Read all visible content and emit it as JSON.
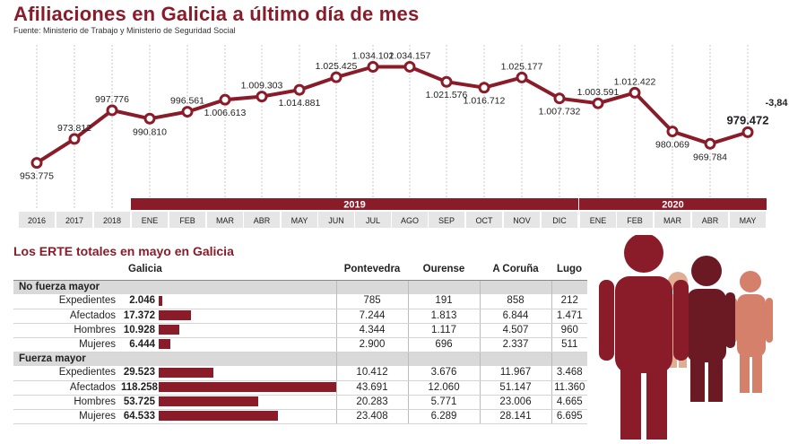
{
  "title": "Afiliaciones en Galicia a último día de mes",
  "source": "Fuente: Ministerio de Trabajo y Ministerio de Seguridad Social",
  "chart_data": {
    "type": "line",
    "x": [
      "2016",
      "2017",
      "2018",
      "ENE",
      "FEB",
      "MAR",
      "ABR",
      "MAY",
      "JUN",
      "JUL",
      "AGO",
      "SEP",
      "OCT",
      "NOV",
      "DIC",
      "ENE",
      "FEB",
      "MAR",
      "ABR",
      "MAY"
    ],
    "values": [
      953775,
      973812,
      997776,
      990810,
      996561,
      1006613,
      1009303,
      1014881,
      1025425,
      1034102,
      1034157,
      1021576,
      1016712,
      1025177,
      1007732,
      1003591,
      1012422,
      980069,
      969784,
      979472
    ],
    "value_labels": [
      "953.775",
      "973.812",
      "997.776",
      "990.810",
      "996.561",
      "1.006.613",
      "1.009.303",
      "1.014.881",
      "1.025.425",
      "1.034.102",
      "1.034.157",
      "1.021.576",
      "1.016.712",
      "1.025.177",
      "1.007.732",
      "1.003.591",
      "1.012.422",
      "980.069",
      "969.784",
      "979.472"
    ],
    "groups": [
      {
        "label": "2019",
        "from": 3,
        "to": 14
      },
      {
        "label": "2020",
        "from": 15,
        "to": 19
      }
    ],
    "annotation": "-3,84",
    "line_color": "#8a1c2a",
    "grid": "vertical"
  },
  "erte": {
    "title": "Los ERTE totales en mayo en Galicia",
    "columns": [
      "Galicia",
      "Pontevedra",
      "Ourense",
      "A Coruña",
      "Lugo"
    ],
    "sections": [
      {
        "name": "No fuerza mayor",
        "rows": [
          {
            "label": "Expedientes",
            "galicia": "2.046",
            "galicia_value": 2046,
            "values": [
              "785",
              "191",
              "858",
              "212"
            ]
          },
          {
            "label": "Afectados",
            "galicia": "17.372",
            "galicia_value": 17372,
            "values": [
              "7.244",
              "1.813",
              "6.844",
              "1.471"
            ]
          },
          {
            "label": "Hombres",
            "galicia": "10.928",
            "galicia_value": 10928,
            "values": [
              "4.344",
              "1.117",
              "4.507",
              "960"
            ]
          },
          {
            "label": "Mujeres",
            "galicia": "6.444",
            "galicia_value": 6444,
            "values": [
              "2.900",
              "696",
              "2.337",
              "511"
            ]
          }
        ]
      },
      {
        "name": "Fuerza mayor",
        "rows": [
          {
            "label": "Expedientes",
            "galicia": "29.523",
            "galicia_value": 29523,
            "values": [
              "10.412",
              "3.676",
              "11.967",
              "3.468"
            ]
          },
          {
            "label": "Afectados",
            "galicia": "118.258",
            "galicia_value": 118258,
            "values": [
              "43.691",
              "12.060",
              "51.147",
              "11.360"
            ]
          },
          {
            "label": "Hombres",
            "galicia": "53.725",
            "galicia_value": 53725,
            "values": [
              "20.283",
              "5.771",
              "23.006",
              "4.665"
            ]
          },
          {
            "label": "Mujeres",
            "galicia": "64.533",
            "galicia_value": 64533,
            "values": [
              "23.408",
              "6.289",
              "28.141",
              "6.695"
            ]
          }
        ]
      }
    ],
    "bar_color": "#8a1c2a"
  },
  "people_colors": [
    "#e0ae95",
    "#d4806b",
    "#6b1a24",
    "#8a1c2a"
  ]
}
